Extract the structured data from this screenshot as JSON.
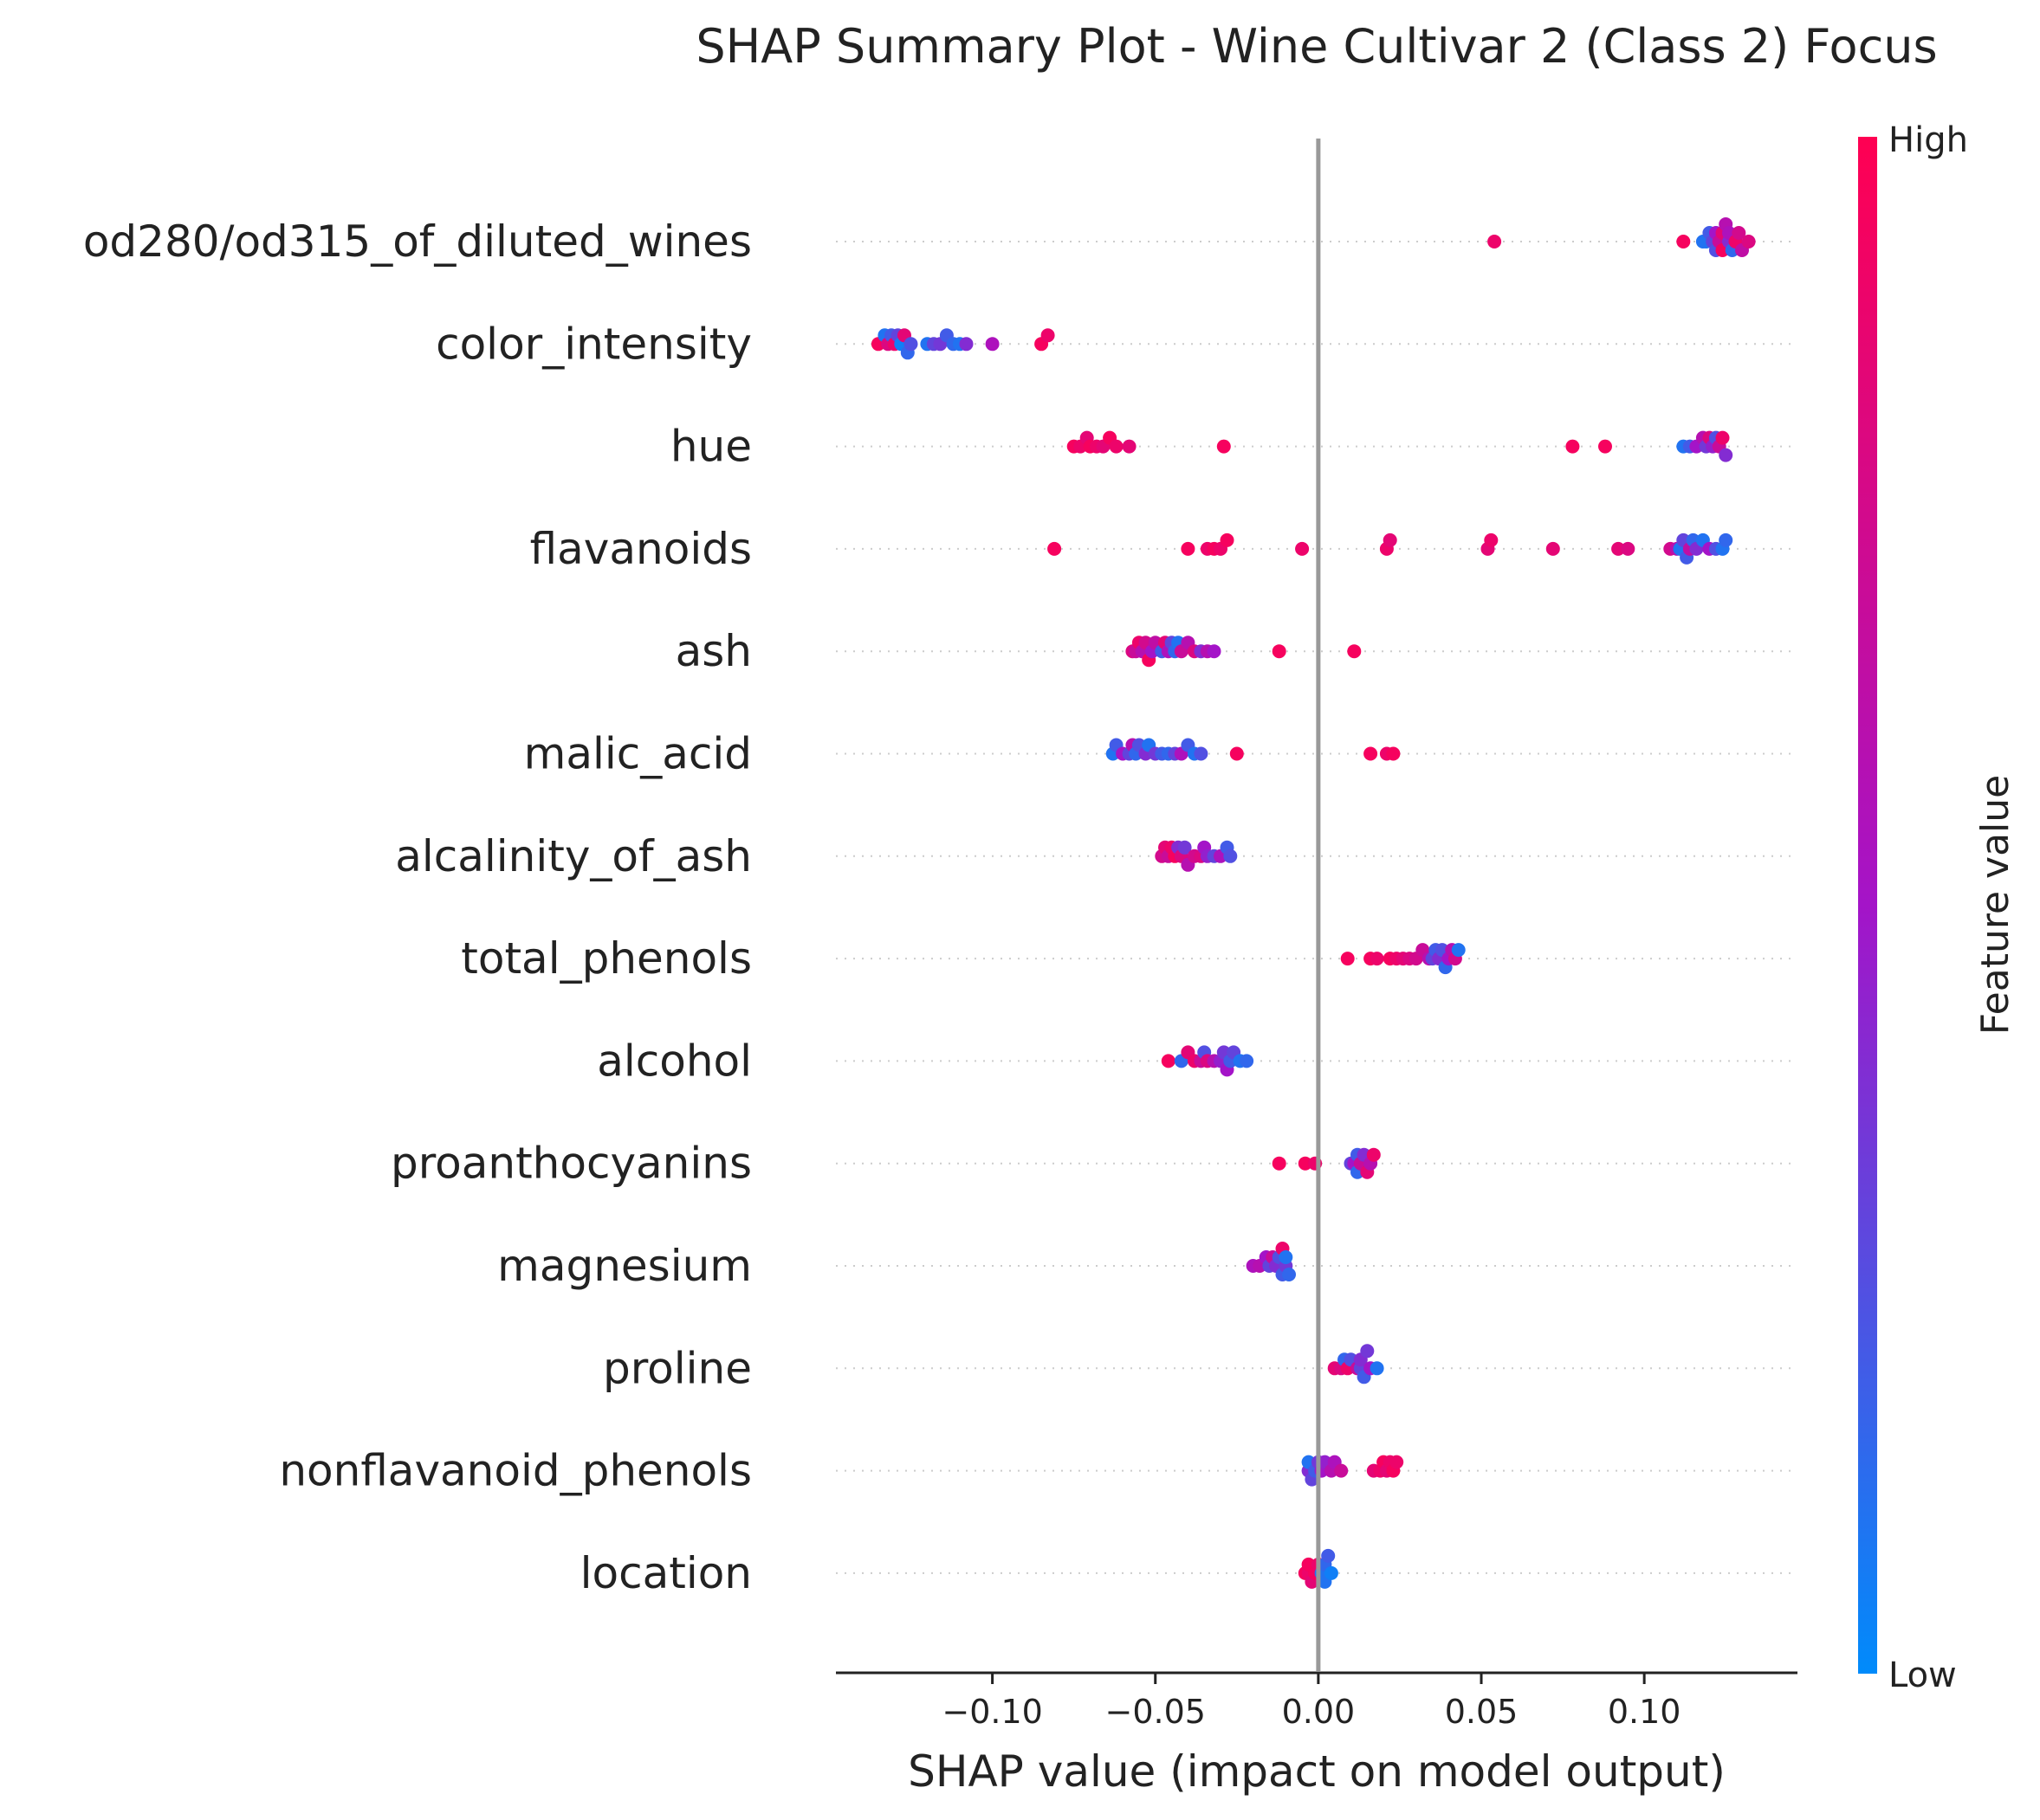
{
  "chart_data": {
    "type": "scatter",
    "title": "SHAP Summary Plot - Wine Cultivar 2 (Class 2) Focus",
    "xlabel": "SHAP value (impact on model output)",
    "xlim": [
      -0.148,
      0.147
    ],
    "xticks": [
      -0.1,
      -0.05,
      0.0,
      0.05,
      0.1
    ],
    "xtick_labels": [
      "−0.10",
      "−0.05",
      "0.00",
      "0.05",
      "0.10"
    ],
    "colorbar": {
      "label": "Feature value",
      "high_label": "High",
      "low_label": "Low",
      "high_color": "#ff0052",
      "low_color": "#008bfb"
    },
    "features": [
      {
        "name": "od280/od315_of_diluted_wines",
        "points": [
          [
            0.054,
            0.9
          ],
          [
            0.112,
            0.95
          ],
          [
            0.119,
            0.1
          ],
          [
            0.12,
            0.2
          ],
          [
            0.121,
            0.3
          ],
          [
            0.122,
            0.5
          ],
          [
            0.123,
            0.7
          ],
          [
            0.124,
            0.85
          ],
          [
            0.125,
            0.6
          ],
          [
            0.126,
            0.4
          ],
          [
            0.127,
            0.15
          ],
          [
            0.128,
            0.9
          ],
          [
            0.129,
            0.75
          ],
          [
            0.13,
            0.65
          ],
          [
            0.132,
            0.8
          ],
          [
            0.118,
            0.1
          ],
          [
            0.122,
            0.25
          ],
          [
            0.124,
            0.95
          ],
          [
            0.126,
            0.55
          ]
        ]
      },
      {
        "name": "color_intensity",
        "points": [
          [
            -0.135,
            0.95
          ],
          [
            -0.133,
            0.1
          ],
          [
            -0.132,
            0.8
          ],
          [
            -0.131,
            0.2
          ],
          [
            -0.13,
            0.9
          ],
          [
            -0.129,
            0.3
          ],
          [
            -0.128,
            0.05
          ],
          [
            -0.127,
            0.85
          ],
          [
            -0.126,
            0.15
          ],
          [
            -0.125,
            0.25
          ],
          [
            -0.12,
            0.1
          ],
          [
            -0.118,
            0.3
          ],
          [
            -0.116,
            0.35
          ],
          [
            -0.114,
            0.2
          ],
          [
            -0.112,
            0.15
          ],
          [
            -0.11,
            0.1
          ],
          [
            -0.108,
            0.4
          ],
          [
            -0.1,
            0.55
          ],
          [
            -0.085,
            0.95
          ],
          [
            -0.083,
            0.9
          ]
        ]
      },
      {
        "name": "hue",
        "points": [
          [
            -0.075,
            0.95
          ],
          [
            -0.073,
            0.9
          ],
          [
            -0.071,
            0.85
          ],
          [
            -0.07,
            0.95
          ],
          [
            -0.068,
            0.9
          ],
          [
            -0.066,
            0.85
          ],
          [
            -0.064,
            0.95
          ],
          [
            -0.062,
            0.9
          ],
          [
            -0.058,
            0.85
          ],
          [
            -0.029,
            0.95
          ],
          [
            0.078,
            0.95
          ],
          [
            0.088,
            0.95
          ],
          [
            0.112,
            0.1
          ],
          [
            0.114,
            0.2
          ],
          [
            0.116,
            0.5
          ],
          [
            0.118,
            0.6
          ],
          [
            0.119,
            0.35
          ],
          [
            0.12,
            0.8
          ],
          [
            0.121,
            0.45
          ],
          [
            0.122,
            0.25
          ],
          [
            0.123,
            0.7
          ],
          [
            0.124,
            0.9
          ],
          [
            0.125,
            0.4
          ]
        ]
      },
      {
        "name": "flavanoids",
        "points": [
          [
            -0.081,
            0.95
          ],
          [
            -0.04,
            0.95
          ],
          [
            -0.034,
            0.9
          ],
          [
            -0.032,
            0.95
          ],
          [
            -0.03,
            0.9
          ],
          [
            -0.028,
            0.95
          ],
          [
            -0.005,
            0.9
          ],
          [
            0.021,
            0.9
          ],
          [
            0.022,
            0.85
          ],
          [
            0.052,
            0.85
          ],
          [
            0.053,
            0.9
          ],
          [
            0.072,
            0.85
          ],
          [
            0.092,
            0.85
          ],
          [
            0.095,
            0.8
          ],
          [
            0.108,
            0.75
          ],
          [
            0.11,
            0.6
          ],
          [
            0.111,
            0.1
          ],
          [
            0.112,
            0.3
          ],
          [
            0.113,
            0.2
          ],
          [
            0.114,
            0.65
          ],
          [
            0.115,
            0.15
          ],
          [
            0.116,
            0.4
          ],
          [
            0.118,
            0.1
          ],
          [
            0.12,
            0.5
          ],
          [
            0.122,
            0.25
          ],
          [
            0.124,
            0.1
          ],
          [
            0.125,
            0.15
          ]
        ]
      },
      {
        "name": "ash",
        "points": [
          [
            -0.057,
            0.8
          ],
          [
            -0.056,
            0.7
          ],
          [
            -0.055,
            0.9
          ],
          [
            -0.054,
            0.6
          ],
          [
            -0.053,
            0.75
          ],
          [
            -0.052,
            0.95
          ],
          [
            -0.051,
            0.5
          ],
          [
            -0.05,
            0.65
          ],
          [
            -0.048,
            0.2
          ],
          [
            -0.047,
            0.85
          ],
          [
            -0.046,
            0.55
          ],
          [
            -0.045,
            0.3
          ],
          [
            -0.044,
            0.15
          ],
          [
            -0.043,
            0.1
          ],
          [
            -0.042,
            0.7
          ],
          [
            -0.04,
            0.6
          ],
          [
            -0.038,
            0.8
          ],
          [
            -0.036,
            0.4
          ],
          [
            -0.034,
            0.6
          ],
          [
            -0.032,
            0.5
          ],
          [
            -0.012,
            0.95
          ],
          [
            0.011,
            0.95
          ]
        ]
      },
      {
        "name": "malic_acid",
        "points": [
          [
            -0.063,
            0.1
          ],
          [
            -0.062,
            0.2
          ],
          [
            -0.06,
            0.5
          ],
          [
            -0.058,
            0.3
          ],
          [
            -0.057,
            0.6
          ],
          [
            -0.056,
            0.15
          ],
          [
            -0.055,
            0.25
          ],
          [
            -0.053,
            0.4
          ],
          [
            -0.052,
            0.1
          ],
          [
            -0.05,
            0.35
          ],
          [
            -0.048,
            0.2
          ],
          [
            -0.046,
            0.15
          ],
          [
            -0.044,
            0.3
          ],
          [
            -0.042,
            0.55
          ],
          [
            -0.04,
            0.2
          ],
          [
            -0.038,
            0.1
          ],
          [
            -0.036,
            0.25
          ],
          [
            -0.025,
            0.95
          ],
          [
            0.016,
            0.95
          ],
          [
            0.021,
            0.9
          ],
          [
            0.023,
            0.95
          ]
        ]
      },
      {
        "name": "alcalinity_of_ash",
        "points": [
          [
            -0.048,
            0.75
          ],
          [
            -0.047,
            0.85
          ],
          [
            -0.046,
            0.7
          ],
          [
            -0.045,
            0.9
          ],
          [
            -0.044,
            0.95
          ],
          [
            -0.043,
            0.4
          ],
          [
            -0.042,
            0.8
          ],
          [
            -0.041,
            0.35
          ],
          [
            -0.04,
            0.6
          ],
          [
            -0.038,
            0.75
          ],
          [
            -0.036,
            0.8
          ],
          [
            -0.035,
            0.5
          ],
          [
            -0.034,
            0.45
          ],
          [
            -0.032,
            0.3
          ],
          [
            -0.03,
            0.55
          ],
          [
            -0.028,
            0.2
          ],
          [
            -0.027,
            0.25
          ]
        ]
      },
      {
        "name": "total_phenols",
        "points": [
          [
            0.009,
            0.95
          ],
          [
            0.016,
            0.95
          ],
          [
            0.018,
            0.9
          ],
          [
            0.022,
            0.95
          ],
          [
            0.024,
            0.9
          ],
          [
            0.026,
            0.85
          ],
          [
            0.028,
            0.8
          ],
          [
            0.03,
            0.75
          ],
          [
            0.032,
            0.7
          ],
          [
            0.034,
            0.6
          ],
          [
            0.035,
            0.3
          ],
          [
            0.036,
            0.2
          ],
          [
            0.037,
            0.4
          ],
          [
            0.038,
            0.25
          ],
          [
            0.039,
            0.15
          ],
          [
            0.04,
            0.5
          ],
          [
            0.041,
            0.6
          ],
          [
            0.042,
            0.75
          ],
          [
            0.043,
            0.1
          ]
        ]
      },
      {
        "name": "alcohol",
        "points": [
          [
            -0.046,
            0.95
          ],
          [
            -0.042,
            0.15
          ],
          [
            -0.04,
            0.85
          ],
          [
            -0.038,
            0.9
          ],
          [
            -0.036,
            0.7
          ],
          [
            -0.035,
            0.25
          ],
          [
            -0.034,
            0.8
          ],
          [
            -0.032,
            0.6
          ],
          [
            -0.03,
            0.45
          ],
          [
            -0.029,
            0.35
          ],
          [
            -0.028,
            0.5
          ],
          [
            -0.027,
            0.2
          ],
          [
            -0.026,
            0.3
          ],
          [
            -0.024,
            0.1
          ],
          [
            -0.022,
            0.15
          ]
        ]
      },
      {
        "name": "proanthocyanins",
        "points": [
          [
            -0.012,
            0.95
          ],
          [
            -0.004,
            0.95
          ],
          [
            -0.001,
            0.9
          ],
          [
            0.01,
            0.3
          ],
          [
            0.011,
            0.5
          ],
          [
            0.012,
            0.2
          ],
          [
            0.013,
            0.7
          ],
          [
            0.014,
            0.4
          ],
          [
            0.015,
            0.85
          ],
          [
            0.016,
            0.6
          ],
          [
            0.017,
            0.9
          ],
          [
            0.012,
            0.15
          ]
        ]
      },
      {
        "name": "magnesium",
        "points": [
          [
            -0.02,
            0.55
          ],
          [
            -0.018,
            0.6
          ],
          [
            -0.016,
            0.5
          ],
          [
            -0.015,
            0.3
          ],
          [
            -0.014,
            0.7
          ],
          [
            -0.013,
            0.4
          ],
          [
            -0.012,
            0.25
          ],
          [
            -0.011,
            0.2
          ],
          [
            -0.01,
            0.35
          ],
          [
            -0.009,
            0.15
          ],
          [
            -0.011,
            0.9
          ],
          [
            -0.01,
            0.1
          ]
        ]
      },
      {
        "name": "proline",
        "points": [
          [
            0.005,
            0.85
          ],
          [
            0.007,
            0.8
          ],
          [
            0.008,
            0.15
          ],
          [
            0.009,
            0.9
          ],
          [
            0.01,
            0.25
          ],
          [
            0.012,
            0.7
          ],
          [
            0.013,
            0.3
          ],
          [
            0.014,
            0.2
          ],
          [
            0.015,
            0.35
          ],
          [
            0.016,
            0.5
          ],
          [
            0.018,
            0.1
          ],
          [
            0.013,
            0.4
          ]
        ]
      },
      {
        "name": "nonflavanoid_phenols",
        "points": [
          [
            -0.003,
            0.4
          ],
          [
            -0.002,
            0.3
          ],
          [
            -0.001,
            0.2
          ],
          [
            0.0,
            0.35
          ],
          [
            0.001,
            0.5
          ],
          [
            -0.003,
            0.1
          ],
          [
            0.002,
            0.45
          ],
          [
            0.004,
            0.6
          ],
          [
            0.005,
            0.55
          ],
          [
            0.007,
            0.7
          ],
          [
            0.017,
            0.85
          ],
          [
            0.019,
            0.9
          ],
          [
            0.02,
            0.95
          ],
          [
            0.021,
            0.85
          ],
          [
            0.022,
            0.9
          ],
          [
            0.023,
            0.95
          ],
          [
            0.024,
            0.9
          ]
        ]
      },
      {
        "name": "location",
        "points": [
          [
            -0.004,
            0.95
          ],
          [
            -0.003,
            0.9
          ],
          [
            -0.002,
            0.85
          ],
          [
            -0.001,
            0.95
          ],
          [
            0.0,
            0.9
          ],
          [
            0.001,
            0.1
          ],
          [
            0.002,
            0.15
          ],
          [
            0.003,
            0.2
          ],
          [
            0.004,
            0.05
          ],
          [
            -0.003,
            0.95
          ],
          [
            0.002,
            0.1
          ]
        ]
      }
    ]
  }
}
